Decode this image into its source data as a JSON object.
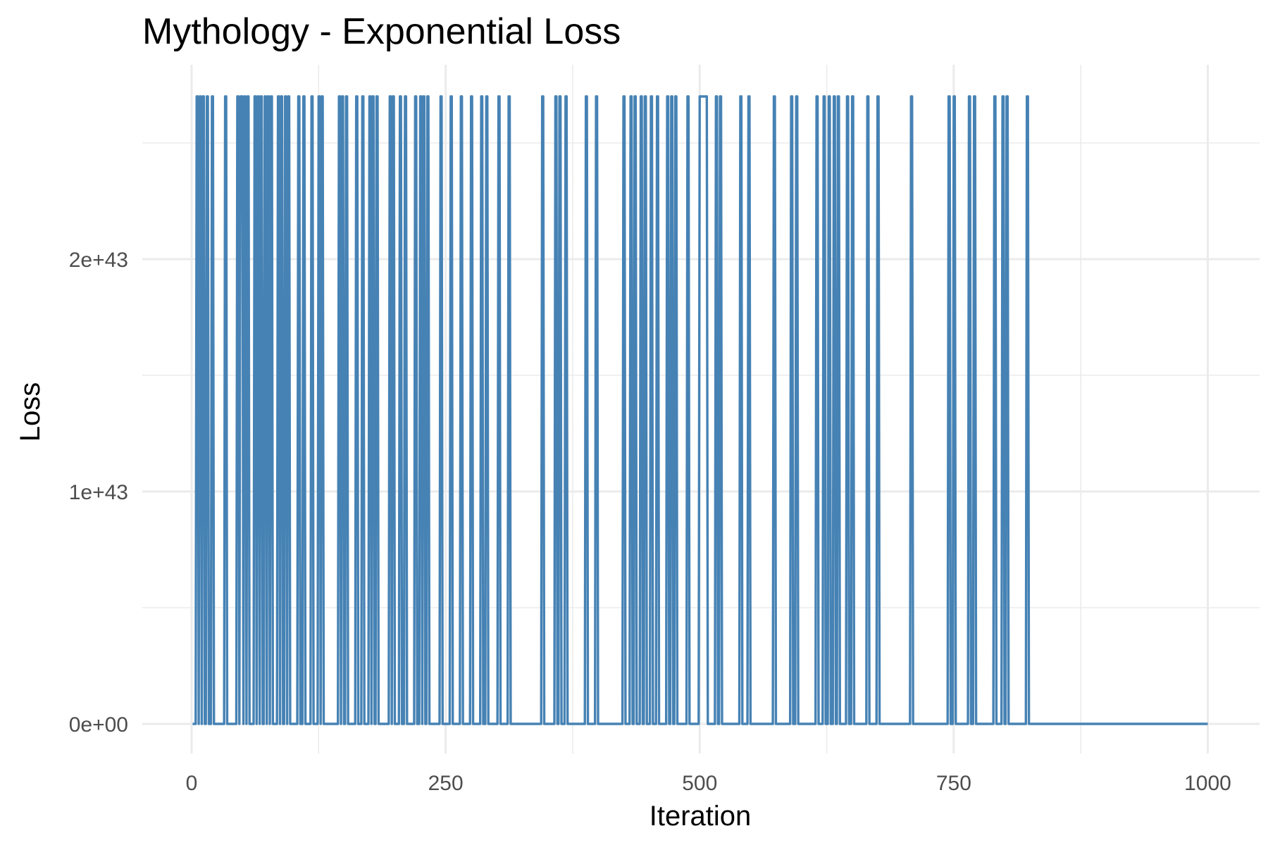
{
  "chart_data": {
    "type": "line",
    "title": "Mythology - Exponential Loss",
    "xlabel": "Iteration",
    "ylabel": "Loss",
    "xlim": [
      1,
      1000
    ],
    "ylim": [
      0,
      2.7e+43
    ],
    "x_ticks": [
      0,
      250,
      500,
      750,
      1000
    ],
    "x_tick_labels": [
      "0",
      "250",
      "500",
      "750",
      "1000"
    ],
    "y_ticks": [
      0,
      1e+43,
      2e+43
    ],
    "y_tick_labels": [
      "0e+00",
      "1e+43",
      "2e+43"
    ],
    "grid": true,
    "series": [
      {
        "color": "#4682B4",
        "low_value": 0,
        "high_value": 2.7e+43,
        "high_intervals": [
          [
            5,
            6
          ],
          [
            8,
            9
          ],
          [
            11,
            12
          ],
          [
            15,
            16
          ],
          [
            20,
            21
          ],
          [
            33,
            34
          ],
          [
            45,
            46
          ],
          [
            48,
            50
          ],
          [
            52,
            53
          ],
          [
            55,
            56
          ],
          [
            62,
            63
          ],
          [
            65,
            66
          ],
          [
            68,
            69
          ],
          [
            72,
            73
          ],
          [
            75,
            76
          ],
          [
            78,
            79
          ],
          [
            85,
            86
          ],
          [
            88,
            89
          ],
          [
            92,
            93
          ],
          [
            95,
            96
          ],
          [
            105,
            106
          ],
          [
            110,
            111
          ],
          [
            118,
            119
          ],
          [
            125,
            126
          ],
          [
            128,
            129
          ],
          [
            145,
            146
          ],
          [
            148,
            149
          ],
          [
            152,
            153
          ],
          [
            162,
            163
          ],
          [
            168,
            169
          ],
          [
            175,
            176
          ],
          [
            178,
            179
          ],
          [
            182,
            183
          ],
          [
            195,
            196
          ],
          [
            198,
            199
          ],
          [
            205,
            206
          ],
          [
            210,
            211
          ],
          [
            220,
            221
          ],
          [
            225,
            226
          ],
          [
            228,
            229
          ],
          [
            232,
            233
          ],
          [
            245,
            246
          ],
          [
            255,
            256
          ],
          [
            265,
            266
          ],
          [
            275,
            276
          ],
          [
            285,
            286
          ],
          [
            290,
            291
          ],
          [
            302,
            303
          ],
          [
            312,
            313
          ],
          [
            345,
            346
          ],
          [
            358,
            359
          ],
          [
            362,
            363
          ],
          [
            368,
            369
          ],
          [
            388,
            389
          ],
          [
            398,
            399
          ],
          [
            425,
            426
          ],
          [
            432,
            433
          ],
          [
            436,
            437
          ],
          [
            442,
            443
          ],
          [
            446,
            447
          ],
          [
            452,
            453
          ],
          [
            458,
            459
          ],
          [
            468,
            469
          ],
          [
            472,
            473
          ],
          [
            476,
            477
          ],
          [
            488,
            489
          ],
          [
            500,
            507
          ],
          [
            516,
            517
          ],
          [
            520,
            521
          ],
          [
            540,
            541
          ],
          [
            548,
            549
          ],
          [
            573,
            574
          ],
          [
            590,
            591
          ],
          [
            595,
            596
          ],
          [
            615,
            616
          ],
          [
            622,
            623
          ],
          [
            627,
            628
          ],
          [
            632,
            633
          ],
          [
            636,
            637
          ],
          [
            645,
            646
          ],
          [
            650,
            651
          ],
          [
            665,
            666
          ],
          [
            675,
            676
          ],
          [
            708,
            709
          ],
          [
            745,
            746
          ],
          [
            750,
            751
          ],
          [
            765,
            766
          ],
          [
            770,
            771
          ],
          [
            790,
            791
          ],
          [
            798,
            799
          ],
          [
            802,
            803
          ],
          [
            822,
            823
          ]
        ]
      }
    ]
  }
}
